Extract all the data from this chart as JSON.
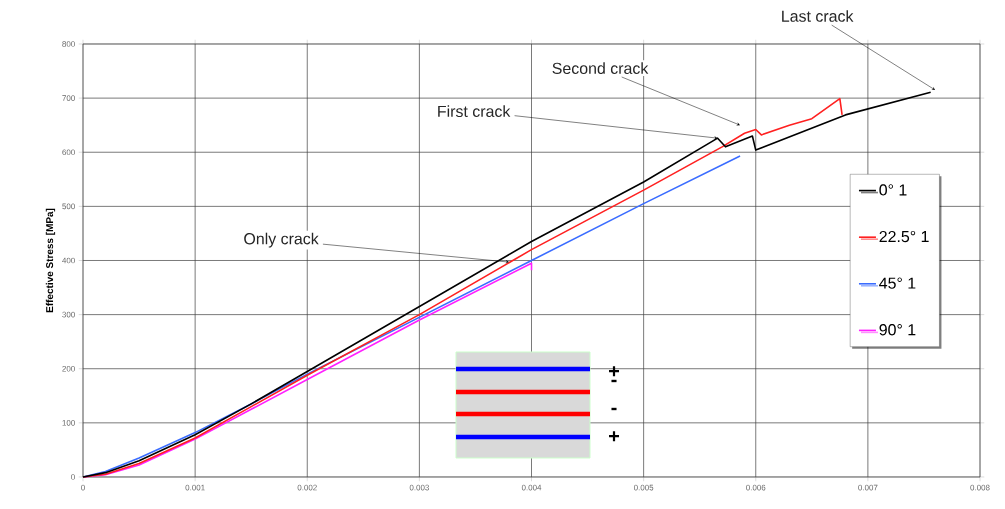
{
  "chart_data": {
    "type": "line",
    "ylabel": "Effective Stress [MPa]",
    "xlim": [
      0,
      0.008
    ],
    "ylim": [
      0,
      800
    ],
    "xticks": [
      0,
      0.001,
      0.002,
      0.003,
      0.004,
      0.005,
      0.006,
      0.007,
      0.008
    ],
    "yticks": [
      0,
      100,
      200,
      300,
      400,
      500,
      600,
      700,
      800
    ],
    "grid": true,
    "legend": "right",
    "marker": "none",
    "line_style": "solid",
    "series": [
      {
        "name": "0° 1",
        "color": "#000000",
        "x": [
          0,
          0.0002,
          0.0005,
          0.001,
          0.0015,
          0.002,
          0.003,
          0.004,
          0.005,
          0.00566,
          0.00573,
          0.00597,
          0.006,
          0.0068,
          0.00756
        ],
        "values": [
          0,
          8,
          30,
          78,
          135,
          195,
          315,
          435,
          545,
          626,
          610,
          630,
          604,
          669,
          711
        ]
      },
      {
        "name": "22.5° 1",
        "color": "#ff2020",
        "x": [
          0,
          0.0002,
          0.0005,
          0.001,
          0.0015,
          0.002,
          0.003,
          0.004,
          0.005,
          0.0057,
          0.0059,
          0.006,
          0.00605,
          0.0063,
          0.0065,
          0.00675,
          0.00677
        ],
        "values": [
          0,
          5,
          25,
          72,
          130,
          188,
          300,
          420,
          530,
          610,
          635,
          642,
          632,
          650,
          662,
          699,
          669
        ]
      },
      {
        "name": "45° 1",
        "color": "#3a6cff",
        "x": [
          0,
          0.0002,
          0.0005,
          0.001,
          0.0015,
          0.002,
          0.003,
          0.004,
          0.005,
          0.00586
        ],
        "values": [
          0,
          10,
          35,
          82,
          135,
          190,
          295,
          400,
          505,
          593
        ]
      },
      {
        "name": "90° 1",
        "color": "#ff20ff",
        "x": [
          0,
          0.0002,
          0.0005,
          0.001,
          0.0015,
          0.002,
          0.003,
          0.004,
          0.004
        ],
        "values": [
          0,
          4,
          22,
          70,
          125,
          180,
          290,
          395,
          382
        ]
      }
    ],
    "annotations": [
      {
        "text": "Only crack",
        "x": 0.0038,
        "y": 397
      },
      {
        "text": "First crack",
        "x": 0.00566,
        "y": 626
      },
      {
        "text": "Second crack",
        "x": 0.00586,
        "y": 650
      },
      {
        "text": "Last crack",
        "x": 0.0076,
        "y": 715
      },
      "+",
      "-",
      "-",
      "+"
    ]
  }
}
